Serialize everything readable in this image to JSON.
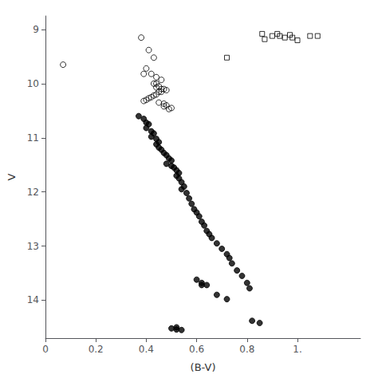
{
  "chart_data": {
    "type": "scatter",
    "xlabel": "(B-V)",
    "ylabel": "V",
    "xlim": [
      0,
      1.25
    ],
    "ylim": [
      14.7,
      8.75
    ],
    "xticks": [
      0,
      0.2,
      0.4,
      0.6,
      0.8,
      {
        "value": 1.0,
        "label": "1."
      }
    ],
    "yticks": [
      9,
      10,
      11,
      12,
      13,
      14
    ],
    "grid": false,
    "series": [
      {
        "marker": "circle_open",
        "color": "#000000",
        "x": [
          0.07,
          0.38,
          0.41,
          0.43,
          0.4,
          0.39,
          0.42,
          0.44,
          0.46,
          0.43,
          0.44,
          0.45,
          0.44,
          0.46,
          0.47,
          0.48,
          0.46,
          0.45,
          0.44,
          0.43,
          0.42,
          0.41,
          0.4,
          0.39,
          0.45,
          0.47,
          0.48,
          0.47,
          0.5,
          0.49
        ],
        "values": [
          9.65,
          9.15,
          9.38,
          9.52,
          9.72,
          9.82,
          9.82,
          9.88,
          9.93,
          10.0,
          10.0,
          10.05,
          10.07,
          10.1,
          10.1,
          10.12,
          10.15,
          10.15,
          10.2,
          10.22,
          10.25,
          10.27,
          10.3,
          10.32,
          10.35,
          10.37,
          10.4,
          10.42,
          10.45,
          10.47
        ]
      },
      {
        "marker": "circle",
        "color": "#000000",
        "x": [
          0.37,
          0.39,
          0.4,
          0.41,
          0.4,
          0.42,
          0.43,
          0.42,
          0.44,
          0.45,
          0.44,
          0.45,
          0.46,
          0.47,
          0.48,
          0.49,
          0.5,
          0.48,
          0.5,
          0.51,
          0.52,
          0.53,
          0.52,
          0.53,
          0.54,
          0.55,
          0.54,
          0.56,
          0.57,
          0.58,
          0.59,
          0.6,
          0.61,
          0.62,
          0.63,
          0.64,
          0.65,
          0.66,
          0.68,
          0.7,
          0.72,
          0.73,
          0.74,
          0.76,
          0.78,
          0.8,
          0.81,
          0.6,
          0.62,
          0.64,
          0.68,
          0.72,
          0.52,
          0.54
        ],
        "values": [
          10.6,
          10.65,
          10.72,
          10.75,
          10.82,
          10.88,
          10.92,
          10.98,
          11.02,
          11.08,
          11.12,
          11.18,
          11.22,
          11.28,
          11.32,
          11.38,
          11.42,
          11.48,
          11.52,
          11.55,
          11.6,
          11.65,
          11.7,
          11.75,
          11.82,
          11.9,
          11.95,
          12.02,
          12.12,
          12.22,
          12.32,
          12.38,
          12.45,
          12.55,
          12.62,
          12.72,
          12.78,
          12.85,
          12.95,
          13.05,
          13.15,
          13.22,
          13.32,
          13.45,
          13.55,
          13.68,
          13.78,
          13.62,
          13.68,
          13.72,
          13.9,
          13.98,
          14.5,
          14.55
        ]
      },
      {
        "marker": "circle",
        "color": "#000000",
        "x": [
          0.5,
          0.52,
          0.62,
          0.82,
          0.85
        ],
        "values": [
          14.52,
          14.54,
          13.72,
          14.38,
          14.42
        ]
      },
      {
        "marker": "square_open",
        "color": "#000000",
        "x": [
          0.72,
          0.86,
          0.87,
          0.9,
          0.92,
          0.93,
          0.95,
          0.97,
          0.98,
          1.0,
          1.05,
          1.08
        ],
        "values": [
          9.52,
          9.08,
          9.18,
          9.12,
          9.08,
          9.12,
          9.15,
          9.1,
          9.15,
          9.2,
          9.12,
          9.12
        ]
      }
    ]
  }
}
